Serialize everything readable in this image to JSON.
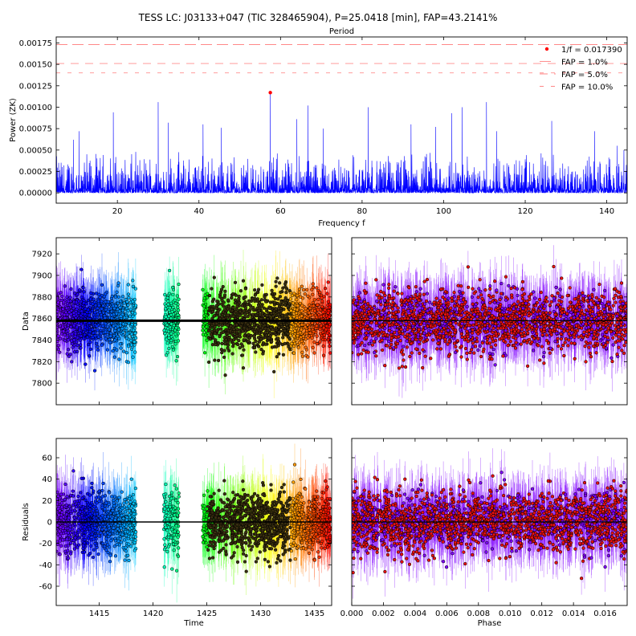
{
  "figure": {
    "title": "TESS LC: J03133+047 (TIC 328465904), P=25.0418 [min], FAP=43.2141%"
  },
  "colors": {
    "periodogram": "#0000ff",
    "peak": "#ff0000",
    "fap": "#ff6060",
    "model": "#000000"
  },
  "chart_data": [
    {
      "id": "periodogram",
      "type": "line",
      "top_label": "Period",
      "xlabel": "Frequency $f$",
      "ylabel": "Power (ZK)",
      "xlim": [
        5,
        145
      ],
      "ylim": [
        -0.00012,
        0.00182
      ],
      "xticks": [
        20,
        40,
        60,
        80,
        100,
        120,
        140
      ],
      "yticks": [
        "0.00000",
        "0.00025",
        "0.00050",
        "0.00075",
        "0.00100",
        "0.00125",
        "0.00150",
        "0.00175"
      ],
      "ytick_values": [
        0,
        0.00025,
        0.0005,
        0.00075,
        0.001,
        0.00125,
        0.0015,
        0.00175
      ],
      "noise": {
        "n_points": 1400,
        "typical_max": 0.00045
      },
      "peaks": [
        {
          "x": 9.2,
          "y": 0.00062
        },
        {
          "x": 10.6,
          "y": 0.00072
        },
        {
          "x": 19.0,
          "y": 0.00094
        },
        {
          "x": 30.0,
          "y": 0.00106
        },
        {
          "x": 32.5,
          "y": 0.00082
        },
        {
          "x": 41.0,
          "y": 0.0008
        },
        {
          "x": 45.5,
          "y": 0.00076
        },
        {
          "x": 57.5,
          "y": 0.00117
        },
        {
          "x": 64.0,
          "y": 0.00086
        },
        {
          "x": 66.7,
          "y": 0.00102
        },
        {
          "x": 70.5,
          "y": 0.00075
        },
        {
          "x": 81.5,
          "y": 0.001
        },
        {
          "x": 92.0,
          "y": 0.0008
        },
        {
          "x": 98.0,
          "y": 0.00077
        },
        {
          "x": 102.0,
          "y": 0.00093
        },
        {
          "x": 104.5,
          "y": 0.001
        },
        {
          "x": 110.5,
          "y": 0.00106
        },
        {
          "x": 113.0,
          "y": 0.00072
        },
        {
          "x": 126.5,
          "y": 0.00084
        },
        {
          "x": 137.0,
          "y": 0.00072
        },
        {
          "x": 142.5,
          "y": 0.00055
        }
      ],
      "best_peak": {
        "x": 57.5,
        "y": 0.00117
      },
      "fap_lines": [
        {
          "label": "FAP = 1.0%",
          "y": 0.00173
        },
        {
          "label": "FAP = 5.0%",
          "y": 0.00151
        },
        {
          "label": "FAP = 10.0%",
          "y": 0.0014
        }
      ],
      "legend": [
        "1/$f$ = 0.017390",
        "FAP = 1.0%",
        "FAP = 5.0%",
        "FAP = 10.0%"
      ],
      "legend_position": "top-right"
    },
    {
      "id": "data-vs-time",
      "type": "scatter",
      "xlabel": "",
      "ylabel": "Data",
      "xlim": [
        1411.0,
        1436.6
      ],
      "ylim": [
        7780,
        7935
      ],
      "yticks": [
        7800,
        7820,
        7840,
        7860,
        7880,
        7900,
        7920
      ],
      "segments": [
        [
          1411.0,
          1418.4
        ],
        [
          1421.0,
          1422.4
        ],
        [
          1424.6,
          1436.5
        ]
      ],
      "center": 7858,
      "scatter_sigma": 14,
      "model_value": 7858,
      "n_points": 2200
    },
    {
      "id": "data-vs-phase",
      "type": "scatter",
      "xlabel": "",
      "ylabel": "",
      "xlim": [
        0.0,
        0.01739
      ],
      "ylim": [
        7780,
        7935
      ],
      "center": 7858,
      "scatter_sigma": 14,
      "model_value": 7858,
      "n_points": 2200
    },
    {
      "id": "residuals-vs-time",
      "type": "scatter",
      "xlabel": "Time",
      "ylabel": "Residuals",
      "xlim": [
        1411.0,
        1436.6
      ],
      "ylim": [
        -78,
        78
      ],
      "xticks": [
        1415,
        1420,
        1425,
        1430,
        1435
      ],
      "yticks": [
        -60,
        -40,
        -20,
        0,
        20,
        40,
        60
      ],
      "segments": [
        [
          1411.0,
          1418.4
        ],
        [
          1421.0,
          1422.4
        ],
        [
          1424.6,
          1436.5
        ]
      ],
      "center": 0,
      "scatter_sigma": 14,
      "model_value": 0,
      "n_points": 2200
    },
    {
      "id": "residuals-vs-phase",
      "type": "scatter",
      "xlabel": "Phase",
      "ylabel": "",
      "xlim": [
        0.0,
        0.01739
      ],
      "ylim": [
        -78,
        78
      ],
      "xticks": [
        "0.000",
        "0.002",
        "0.004",
        "0.006",
        "0.008",
        "0.010",
        "0.012",
        "0.014",
        "0.016"
      ],
      "xtick_values": [
        0,
        0.002,
        0.004,
        0.006,
        0.008,
        0.01,
        0.012,
        0.014,
        0.016
      ],
      "center": 0,
      "scatter_sigma": 14,
      "model_value": 0,
      "n_points": 2200
    }
  ]
}
